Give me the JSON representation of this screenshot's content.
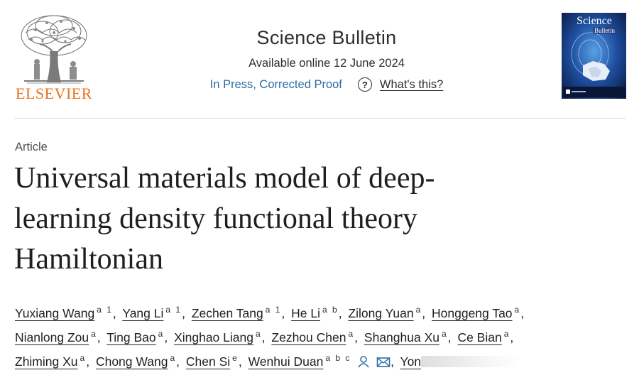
{
  "header": {
    "publisher": "ELSEVIER",
    "journal_title": "Science Bulletin",
    "available_online": "Available online 12 June 2024",
    "status_link": "In Press, Corrected Proof",
    "help_link": "What's this?",
    "cover_title": "Science",
    "cover_subtitle": "Bulletin"
  },
  "article": {
    "type": "Article",
    "title_lines": [
      "Universal materials model of deep-",
      "learning density functional theory",
      "Hamiltonian"
    ]
  },
  "authors": {
    "line1": [
      {
        "name": "Yuxiang Wang",
        "aff": "a 1"
      },
      {
        "name": "Yang Li",
        "aff": "a 1"
      },
      {
        "name": "Zechen Tang",
        "aff": "a 1"
      },
      {
        "name": "He Li",
        "aff": "a b"
      },
      {
        "name": "Zilong Yuan",
        "aff": "a"
      },
      {
        "name": "Honggeng Tao",
        "aff": "a"
      }
    ],
    "line2": [
      {
        "name": "Nianlong Zou",
        "aff": "a"
      },
      {
        "name": "Ting Bao",
        "aff": "a"
      },
      {
        "name": "Xinghao Liang",
        "aff": "a"
      },
      {
        "name": "Zezhou Chen",
        "aff": "a"
      },
      {
        "name": "Shanghua Xu",
        "aff": "a"
      },
      {
        "name": "Ce Bian",
        "aff": "a"
      }
    ],
    "line3": [
      {
        "name": "Zhiming Xu",
        "aff": "a"
      },
      {
        "name": "Chong Wang",
        "aff": "a"
      },
      {
        "name": "Chen Si",
        "aff": "e"
      },
      {
        "name": "Wenhui Duan",
        "aff": "a b c"
      }
    ],
    "trailing_name": "Yon",
    "icons": [
      "person-icon",
      "mail-icon"
    ]
  },
  "colors": {
    "link_blue": "#2e6ca4",
    "elsevier_orange": "#e9711c",
    "text_dark": "#1f1f1f"
  }
}
